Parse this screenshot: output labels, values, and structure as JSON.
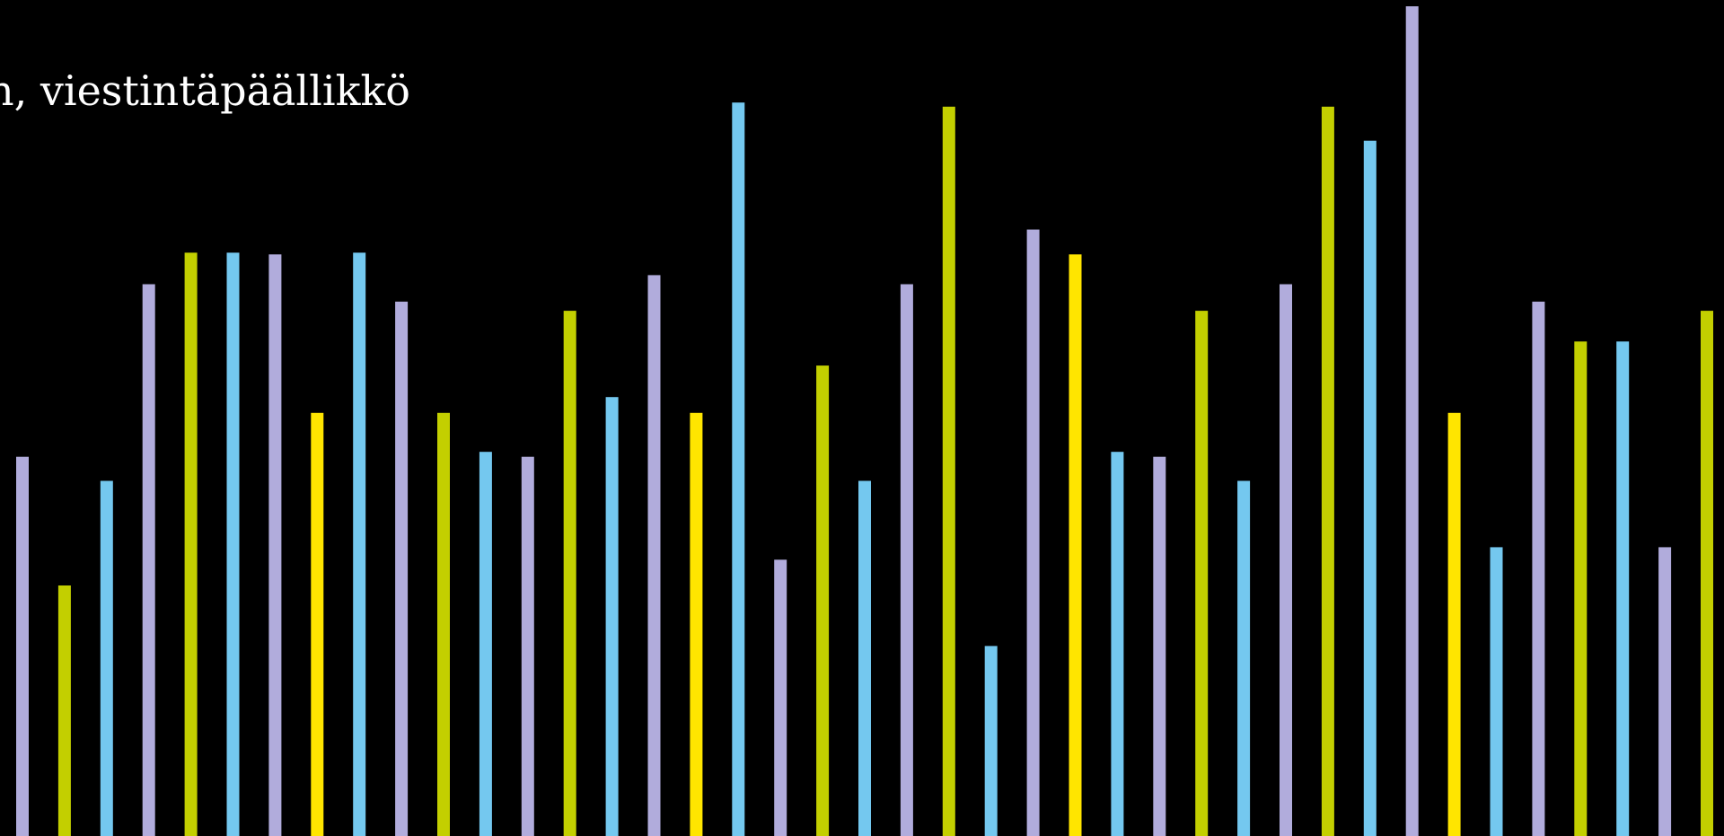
{
  "slide": {
    "caption": "n, viestintäpäällikkö"
  },
  "colors": {
    "background": "#000000",
    "lavender": "#b1acdc",
    "olive": "#c3cf00",
    "sky": "#74c8ef",
    "yellow": "#ffe500"
  },
  "decoration": {
    "bars": [
      {
        "color": "lavender",
        "level": 0.457
      },
      {
        "color": "olive",
        "level": 0.302
      },
      {
        "color": "sky",
        "level": 0.428
      },
      {
        "color": "lavender",
        "level": 0.665
      },
      {
        "color": "olive",
        "level": 0.703
      },
      {
        "color": "sky",
        "level": 0.703
      },
      {
        "color": "lavender",
        "level": 0.701
      },
      {
        "color": "yellow",
        "level": 0.51
      },
      {
        "color": "sky",
        "level": 0.703
      },
      {
        "color": "lavender",
        "level": 0.644
      },
      {
        "color": "olive",
        "level": 0.51
      },
      {
        "color": "sky",
        "level": 0.463
      },
      {
        "color": "lavender",
        "level": 0.457
      },
      {
        "color": "olive",
        "level": 0.633
      },
      {
        "color": "sky",
        "level": 0.529
      },
      {
        "color": "lavender",
        "level": 0.676
      },
      {
        "color": "yellow",
        "level": 0.51
      },
      {
        "color": "sky",
        "level": 0.884
      },
      {
        "color": "lavender",
        "level": 0.333
      },
      {
        "color": "olive",
        "level": 0.567
      },
      {
        "color": "sky",
        "level": 0.428
      },
      {
        "color": "lavender",
        "level": 0.665
      },
      {
        "color": "olive",
        "level": 0.879
      },
      {
        "color": "sky",
        "level": 0.229
      },
      {
        "color": "lavender",
        "level": 0.731
      },
      {
        "color": "yellow",
        "level": 0.701
      },
      {
        "color": "sky",
        "level": 0.463
      },
      {
        "color": "lavender",
        "level": 0.457
      },
      {
        "color": "olive",
        "level": 0.633
      },
      {
        "color": "sky",
        "level": 0.428
      },
      {
        "color": "lavender",
        "level": 0.665
      },
      {
        "color": "olive",
        "level": 0.879
      },
      {
        "color": "sky",
        "level": 0.838
      },
      {
        "color": "lavender",
        "level": 1.0
      },
      {
        "color": "yellow",
        "level": 0.51
      },
      {
        "color": "sky",
        "level": 0.348
      },
      {
        "color": "lavender",
        "level": 0.644
      },
      {
        "color": "olive",
        "level": 0.596
      },
      {
        "color": "sky",
        "level": 0.596
      },
      {
        "color": "lavender",
        "level": 0.348
      },
      {
        "color": "olive",
        "level": 0.633
      }
    ]
  }
}
